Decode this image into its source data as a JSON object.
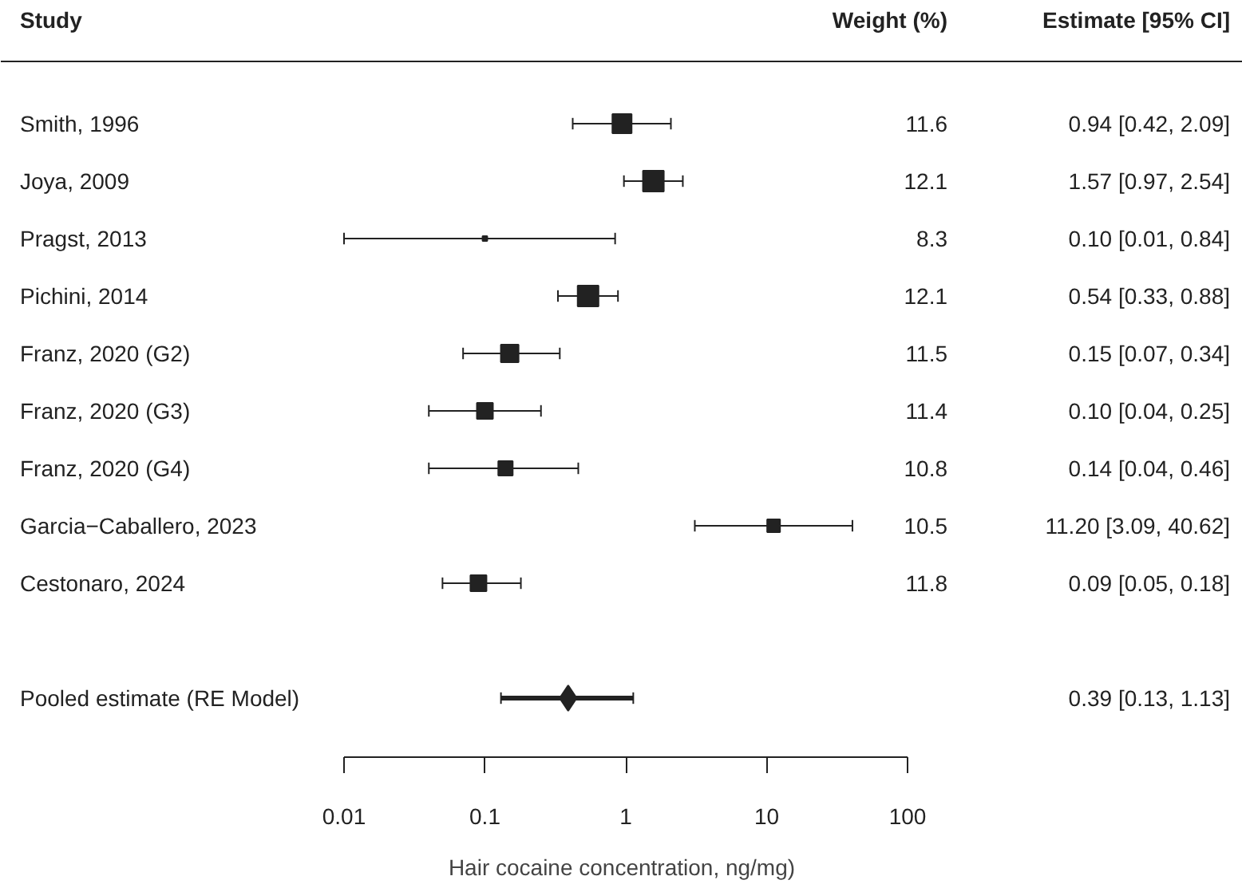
{
  "chart_data": {
    "type": "scatter",
    "orientation": "horizontal",
    "categories": [
      "Smith, 1996",
      "Joya, 2009",
      "Pragst, 2013",
      "Pichini, 2014",
      "Franz, 2020 (G2)",
      "Franz, 2020 (G3)",
      "Franz, 2020 (G4)",
      "Garcia−Caballero, 2023",
      "Cestonaro, 2024",
      "Pooled estimate (RE Model)"
    ],
    "xlabel": "Hair cocaine concentration, ng/mg)",
    "log": "x",
    "xlim": [
      0.01,
      100
    ],
    "xticks": [
      {
        "value": 0.01,
        "label": "0.01"
      },
      {
        "value": 0.1,
        "label": "0.1"
      },
      {
        "value": 1,
        "label": "1"
      },
      {
        "value": 10,
        "label": "10"
      },
      {
        "value": 100,
        "label": "100"
      }
    ],
    "grid": false,
    "annotations": [
      "Study",
      "Weight (%)",
      "Estimate [95% CI]",
      "11.6",
      "12.1",
      "8.3",
      "12.1",
      "11.5",
      "11.4",
      "10.8",
      "10.5",
      "11.8",
      "0.39 [0.13, 1.13]"
    ],
    "series": [
      {
        "type": "bubble",
        "marker": "square",
        "color": "#222222",
        "values": [
          0.94,
          1.57,
          0.1,
          0.54,
          0.15,
          0.1,
          0.14,
          11.2,
          0.09,
          null
        ],
        "errors": [
          [
            0.42,
            2.09
          ],
          [
            0.97,
            2.54
          ],
          [
            0.01,
            0.84
          ],
          [
            0.33,
            0.88
          ],
          [
            0.07,
            0.34
          ],
          [
            0.04,
            0.25
          ],
          [
            0.04,
            0.46
          ],
          [
            3.09,
            40.62
          ],
          [
            0.05,
            0.18
          ],
          null
        ],
        "sizes": [
          0.85,
          1,
          0.05,
          1,
          0.72,
          0.59,
          0.48,
          0.38,
          0.59,
          null
        ],
        "value_labels": [
          "0.94 [0.42, 2.09]",
          "1.57 [0.97, 2.54]",
          "0.10 [0.01, 0.84]",
          "0.54 [0.33, 0.88]",
          "0.15 [0.07, 0.34]",
          "0.10 [0.04, 0.25]",
          "0.14 [0.04, 0.46]",
          "11.20 [3.09, 40.62]",
          "0.09 [0.05, 0.18]",
          null
        ]
      },
      {
        "type": "scatter",
        "marker": "diamond",
        "color": "#222222",
        "values": [
          null,
          null,
          null,
          null,
          null,
          null,
          null,
          null,
          null,
          0.39
        ],
        "errors": [
          null,
          null,
          null,
          null,
          null,
          null,
          null,
          null,
          null,
          [
            0.13,
            1.13
          ]
        ]
      }
    ]
  }
}
